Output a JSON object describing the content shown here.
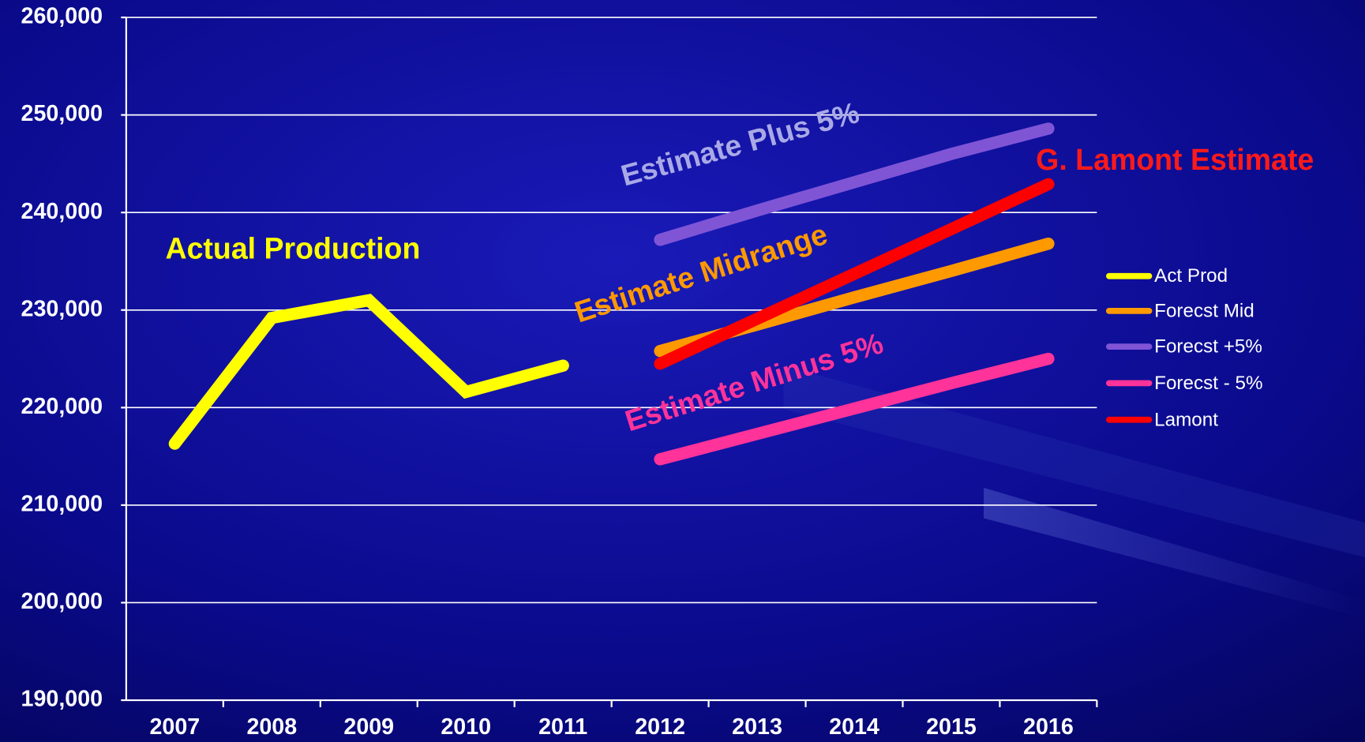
{
  "chart_data": {
    "type": "line",
    "categories": [
      "2007",
      "2008",
      "2009",
      "2010",
      "2011",
      "2012",
      "2013",
      "2014",
      "2015",
      "2016"
    ],
    "series": [
      {
        "name": "Act Prod",
        "color": "#ffff00",
        "values": [
          216300,
          229200,
          231000,
          221600,
          224300,
          null,
          null,
          null,
          null,
          null
        ]
      },
      {
        "name": "Forecst Mid",
        "color": "#ff9900",
        "values": [
          null,
          null,
          null,
          null,
          null,
          225800,
          228500,
          231300,
          234000,
          236800
        ]
      },
      {
        "name": "Forecst +5%",
        "color": "#7f55d6",
        "values": [
          null,
          null,
          null,
          null,
          null,
          237200,
          240200,
          243100,
          246000,
          248600
        ]
      },
      {
        "name": "Forecst - 5%",
        "color": "#ff3399",
        "values": [
          null,
          null,
          null,
          null,
          null,
          214700,
          217300,
          219900,
          222500,
          225000
        ]
      },
      {
        "name": "Lamont",
        "color": "#ff0000",
        "values": [
          null,
          null,
          null,
          null,
          null,
          224500,
          229100,
          233700,
          238300,
          242900
        ]
      }
    ],
    "ylim": [
      190000,
      260000
    ],
    "yticks": [
      {
        "value": 190000,
        "label": "190,000"
      },
      {
        "value": 200000,
        "label": "200,000"
      },
      {
        "value": 210000,
        "label": "210,000"
      },
      {
        "value": 220000,
        "label": "220,000"
      },
      {
        "value": 230000,
        "label": "230,000"
      },
      {
        "value": 240000,
        "label": "240,000"
      },
      {
        "value": 250000,
        "label": "250,000"
      },
      {
        "value": 260000,
        "label": "260,000"
      }
    ],
    "grid": true,
    "legend": "right",
    "annotations": [
      {
        "text": "Actual Production",
        "color": "#ffff00"
      },
      {
        "text": "Estimate Plus 5%",
        "color": "#a9a9e6"
      },
      {
        "text": "G. Lamont Estimate",
        "color": "#ff1a1a"
      },
      {
        "text": "Estimate Midrange",
        "color": "#ff9900"
      },
      {
        "text": "Estimate Minus 5%",
        "color": "#ff3399"
      }
    ]
  }
}
